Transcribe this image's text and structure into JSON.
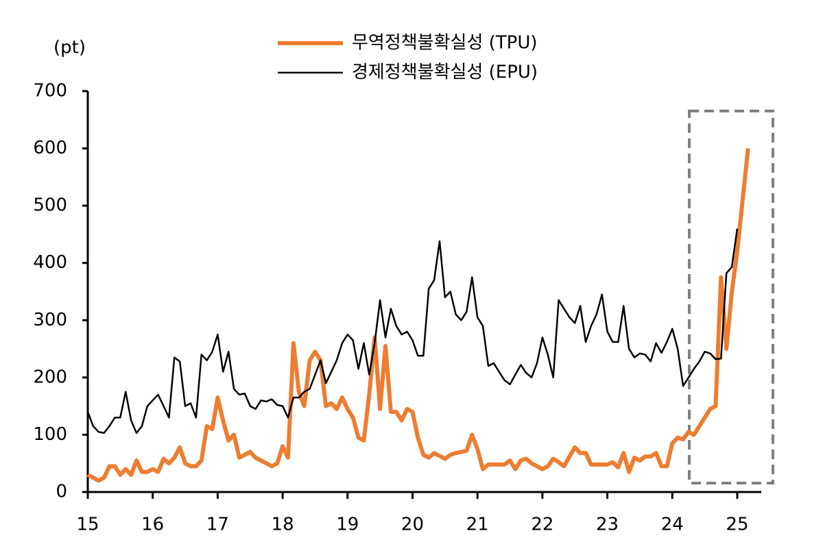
{
  "chart_data": {
    "type": "line",
    "y_label": "(pt)",
    "xlim": [
      15,
      25.37
    ],
    "xticks": [
      15,
      16,
      17,
      18,
      19,
      20,
      21,
      22,
      23,
      24,
      25
    ],
    "ylim": [
      0,
      700
    ],
    "yticks": [
      0,
      100,
      200,
      300,
      400,
      500,
      600,
      700
    ],
    "x": [
      15,
      15.083,
      15.167,
      15.25,
      15.333,
      15.417,
      15.5,
      15.583,
      15.667,
      15.75,
      15.833,
      15.917,
      16,
      16.083,
      16.167,
      16.25,
      16.333,
      16.417,
      16.5,
      16.583,
      16.667,
      16.75,
      16.833,
      16.917,
      17,
      17.083,
      17.167,
      17.25,
      17.333,
      17.417,
      17.5,
      17.583,
      17.667,
      17.75,
      17.833,
      17.917,
      18,
      18.083,
      18.167,
      18.25,
      18.333,
      18.417,
      18.5,
      18.583,
      18.667,
      18.75,
      18.833,
      18.917,
      19,
      19.083,
      19.167,
      19.25,
      19.333,
      19.417,
      19.5,
      19.583,
      19.667,
      19.75,
      19.833,
      19.917,
      20,
      20.083,
      20.167,
      20.25,
      20.333,
      20.417,
      20.5,
      20.583,
      20.667,
      20.75,
      20.833,
      20.917,
      21,
      21.083,
      21.167,
      21.25,
      21.333,
      21.417,
      21.5,
      21.583,
      21.667,
      21.75,
      21.833,
      21.917,
      22,
      22.083,
      22.167,
      22.25,
      22.333,
      22.417,
      22.5,
      22.583,
      22.667,
      22.75,
      22.833,
      22.917,
      23,
      23.083,
      23.167,
      23.25,
      23.333,
      23.417,
      23.5,
      23.583,
      23.667,
      23.75,
      23.833,
      23.917,
      24,
      24.083,
      24.167,
      24.25,
      24.333,
      24.417,
      24.5,
      24.583,
      24.667,
      24.75,
      24.833,
      24.917,
      25,
      25.083,
      25.167
    ],
    "series": [
      {
        "name": "무역정책불확실성 (TPU)",
        "color": "#ed7d31",
        "width": 6,
        "values": [
          30,
          25,
          20,
          25,
          45,
          45,
          30,
          40,
          30,
          55,
          35,
          35,
          40,
          35,
          58,
          50,
          60,
          78,
          50,
          45,
          45,
          55,
          115,
          110,
          165,
          125,
          90,
          100,
          60,
          65,
          70,
          60,
          55,
          50,
          45,
          50,
          80,
          60,
          260,
          175,
          150,
          230,
          245,
          230,
          150,
          155,
          145,
          165,
          145,
          130,
          95,
          90,
          170,
          270,
          145,
          255,
          140,
          140,
          125,
          145,
          140,
          95,
          65,
          60,
          68,
          63,
          58,
          65,
          68,
          70,
          72,
          100,
          75,
          40,
          48,
          48,
          48,
          48,
          55,
          40,
          55,
          58,
          50,
          45,
          40,
          45,
          58,
          52,
          45,
          62,
          78,
          68,
          68,
          48,
          48,
          48,
          48,
          52,
          43,
          68,
          35,
          60,
          55,
          62,
          62,
          68,
          45,
          45,
          85,
          95,
          92,
          105,
          100,
          115,
          130,
          145,
          150,
          375,
          250,
          350,
          420,
          510,
          600
        ]
      },
      {
        "name": "경제정책불확실성 (EPU)",
        "color": "#000000",
        "width": 2.5,
        "values": [
          140,
          115,
          105,
          103,
          115,
          130,
          130,
          175,
          125,
          103,
          115,
          150,
          160,
          170,
          150,
          130,
          235,
          228,
          150,
          155,
          130,
          240,
          230,
          245,
          275,
          210,
          245,
          180,
          170,
          172,
          150,
          145,
          160,
          158,
          162,
          152,
          150,
          130,
          165,
          165,
          175,
          180,
          205,
          230,
          190,
          210,
          230,
          260,
          275,
          265,
          215,
          260,
          205,
          260,
          335,
          270,
          320,
          290,
          275,
          280,
          265,
          238,
          238,
          355,
          370,
          438,
          340,
          350,
          310,
          300,
          315,
          375,
          305,
          290,
          220,
          225,
          210,
          195,
          188,
          205,
          222,
          208,
          200,
          225,
          270,
          240,
          200,
          335,
          320,
          305,
          295,
          325,
          262,
          290,
          310,
          345,
          280,
          262,
          262,
          325,
          250,
          235,
          242,
          240,
          228,
          260,
          243,
          262,
          285,
          250,
          185,
          200,
          215,
          228,
          245,
          242,
          232,
          233,
          382,
          393,
          460,
          null,
          null
        ]
      }
    ]
  }
}
